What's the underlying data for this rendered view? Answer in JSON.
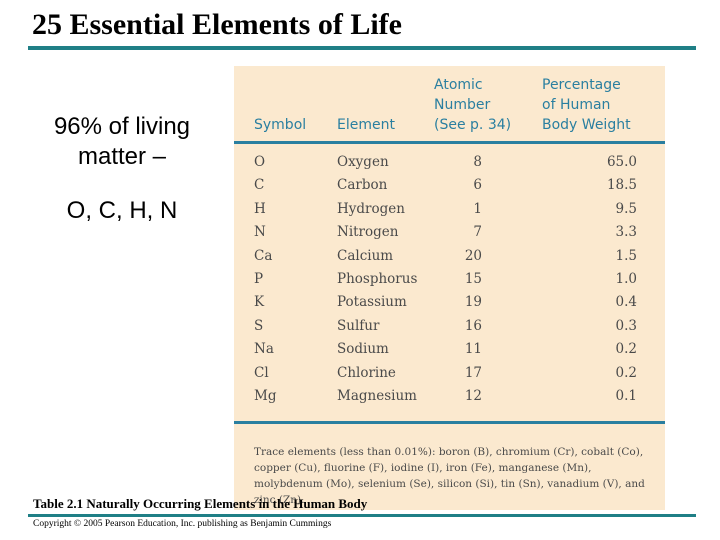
{
  "title": "25 Essential Elements of Life",
  "left_text": {
    "line1": "96% of living matter –",
    "line2": "O, C, H, N"
  },
  "table": {
    "headers": {
      "symbol": "Symbol",
      "element": "Element",
      "atomic_number": [
        "Atomic",
        "Number",
        "(See p. 34)"
      ],
      "percentage": [
        "Percentage",
        "of Human",
        "Body Weight"
      ]
    },
    "rows": [
      {
        "symbol": "O",
        "element": "Oxygen",
        "number": "8",
        "percent": "65.0"
      },
      {
        "symbol": "C",
        "element": "Carbon",
        "number": "6",
        "percent": "18.5"
      },
      {
        "symbol": "H",
        "element": "Hydrogen",
        "number": "1",
        "percent": "9.5"
      },
      {
        "symbol": "N",
        "element": "Nitrogen",
        "number": "7",
        "percent": "3.3"
      },
      {
        "symbol": "Ca",
        "element": "Calcium",
        "number": "20",
        "percent": "1.5"
      },
      {
        "symbol": "P",
        "element": "Phosphorus",
        "number": "15",
        "percent": "1.0"
      },
      {
        "symbol": "K",
        "element": "Potassium",
        "number": "19",
        "percent": "0.4"
      },
      {
        "symbol": "S",
        "element": "Sulfur",
        "number": "16",
        "percent": "0.3"
      },
      {
        "symbol": "Na",
        "element": "Sodium",
        "number": "11",
        "percent": "0.2"
      },
      {
        "symbol": "Cl",
        "element": "Chlorine",
        "number": "17",
        "percent": "0.2"
      },
      {
        "symbol": "Mg",
        "element": "Magnesium",
        "number": "12",
        "percent": "0.1"
      }
    ],
    "trace": "Trace elements (less than 0.01%): boron (B), chromium (Cr), cobalt (Co), copper (Cu), fluorine (F), iodine (I), iron (Fe), manganese (Mn), molybdenum (Mo), selenium (Se), silicon (Si), tin (Sn), vanadium (V), and zinc (Zn)."
  },
  "caption": "Table 2.1 Naturally Occurring Elements in the Human Body",
  "copyright": "Copyright © 2005 Pearson Education, Inc. publishing as Benjamin Cummings",
  "colors": {
    "rule": "#1f7f86",
    "table_bg": "#fbe9cf",
    "table_accent": "#2a7fa0"
  }
}
